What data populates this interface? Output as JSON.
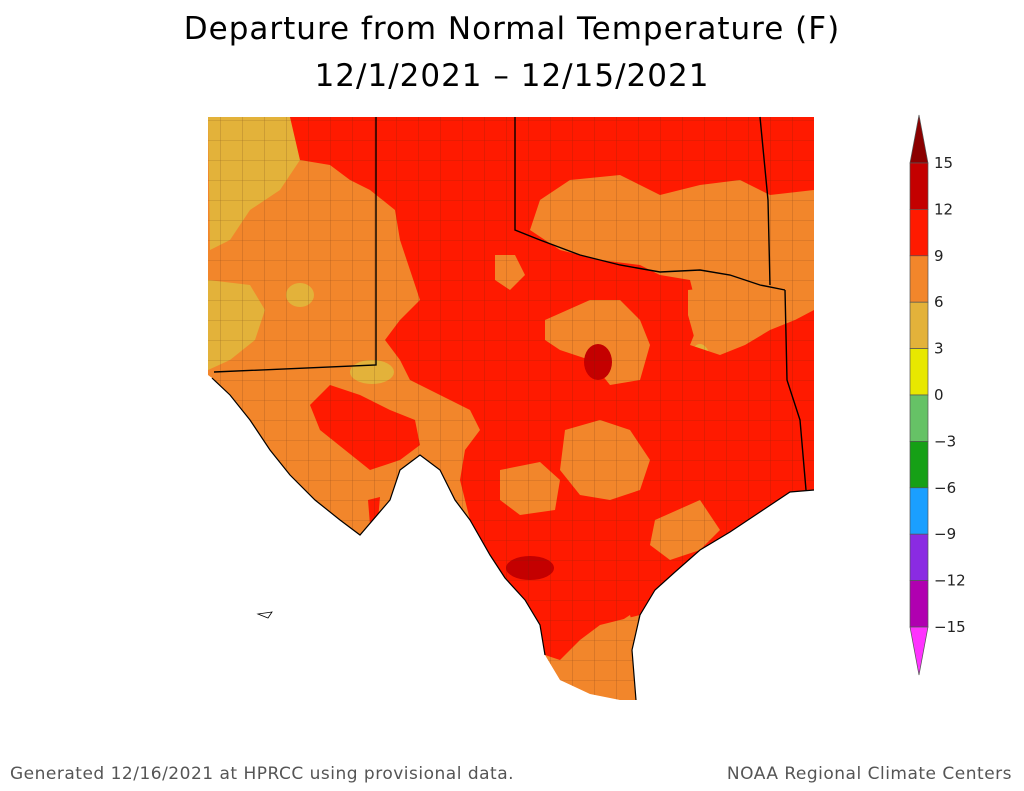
{
  "title_line1": "Departure from Normal Temperature (F)",
  "title_line2": "12/1/2021 – 12/15/2021",
  "legend": {
    "min": -15,
    "max": 15,
    "step": 3,
    "labels": [
      "15",
      "12",
      "9",
      "6",
      "3",
      "0",
      "−3",
      "−6",
      "−9",
      "−12",
      "−15"
    ],
    "bins": [
      {
        "from": 15,
        "to": 18,
        "color": "#8b0000"
      },
      {
        "from": 12,
        "to": 15,
        "color": "#c40000"
      },
      {
        "from": 9,
        "to": 12,
        "color": "#ff1a00"
      },
      {
        "from": 6,
        "to": 9,
        "color": "#f2862b"
      },
      {
        "from": 3,
        "to": 6,
        "color": "#e3b23a"
      },
      {
        "from": 0,
        "to": 3,
        "color": "#e8e800"
      },
      {
        "from": -3,
        "to": 0,
        "color": "#66c266"
      },
      {
        "from": -6,
        "to": -3,
        "color": "#16a016"
      },
      {
        "from": -9,
        "to": -6,
        "color": "#1a9fff"
      },
      {
        "from": -12,
        "to": -9,
        "color": "#8a2be2"
      },
      {
        "from": -15,
        "to": -12,
        "color": "#b000b0"
      },
      {
        "from": -18,
        "to": -15,
        "color": "#ff33ff"
      }
    ]
  },
  "footer_left": "Generated 12/16/2021 at HPRCC using provisional data.",
  "footer_right": "NOAA Regional Climate Centers"
}
